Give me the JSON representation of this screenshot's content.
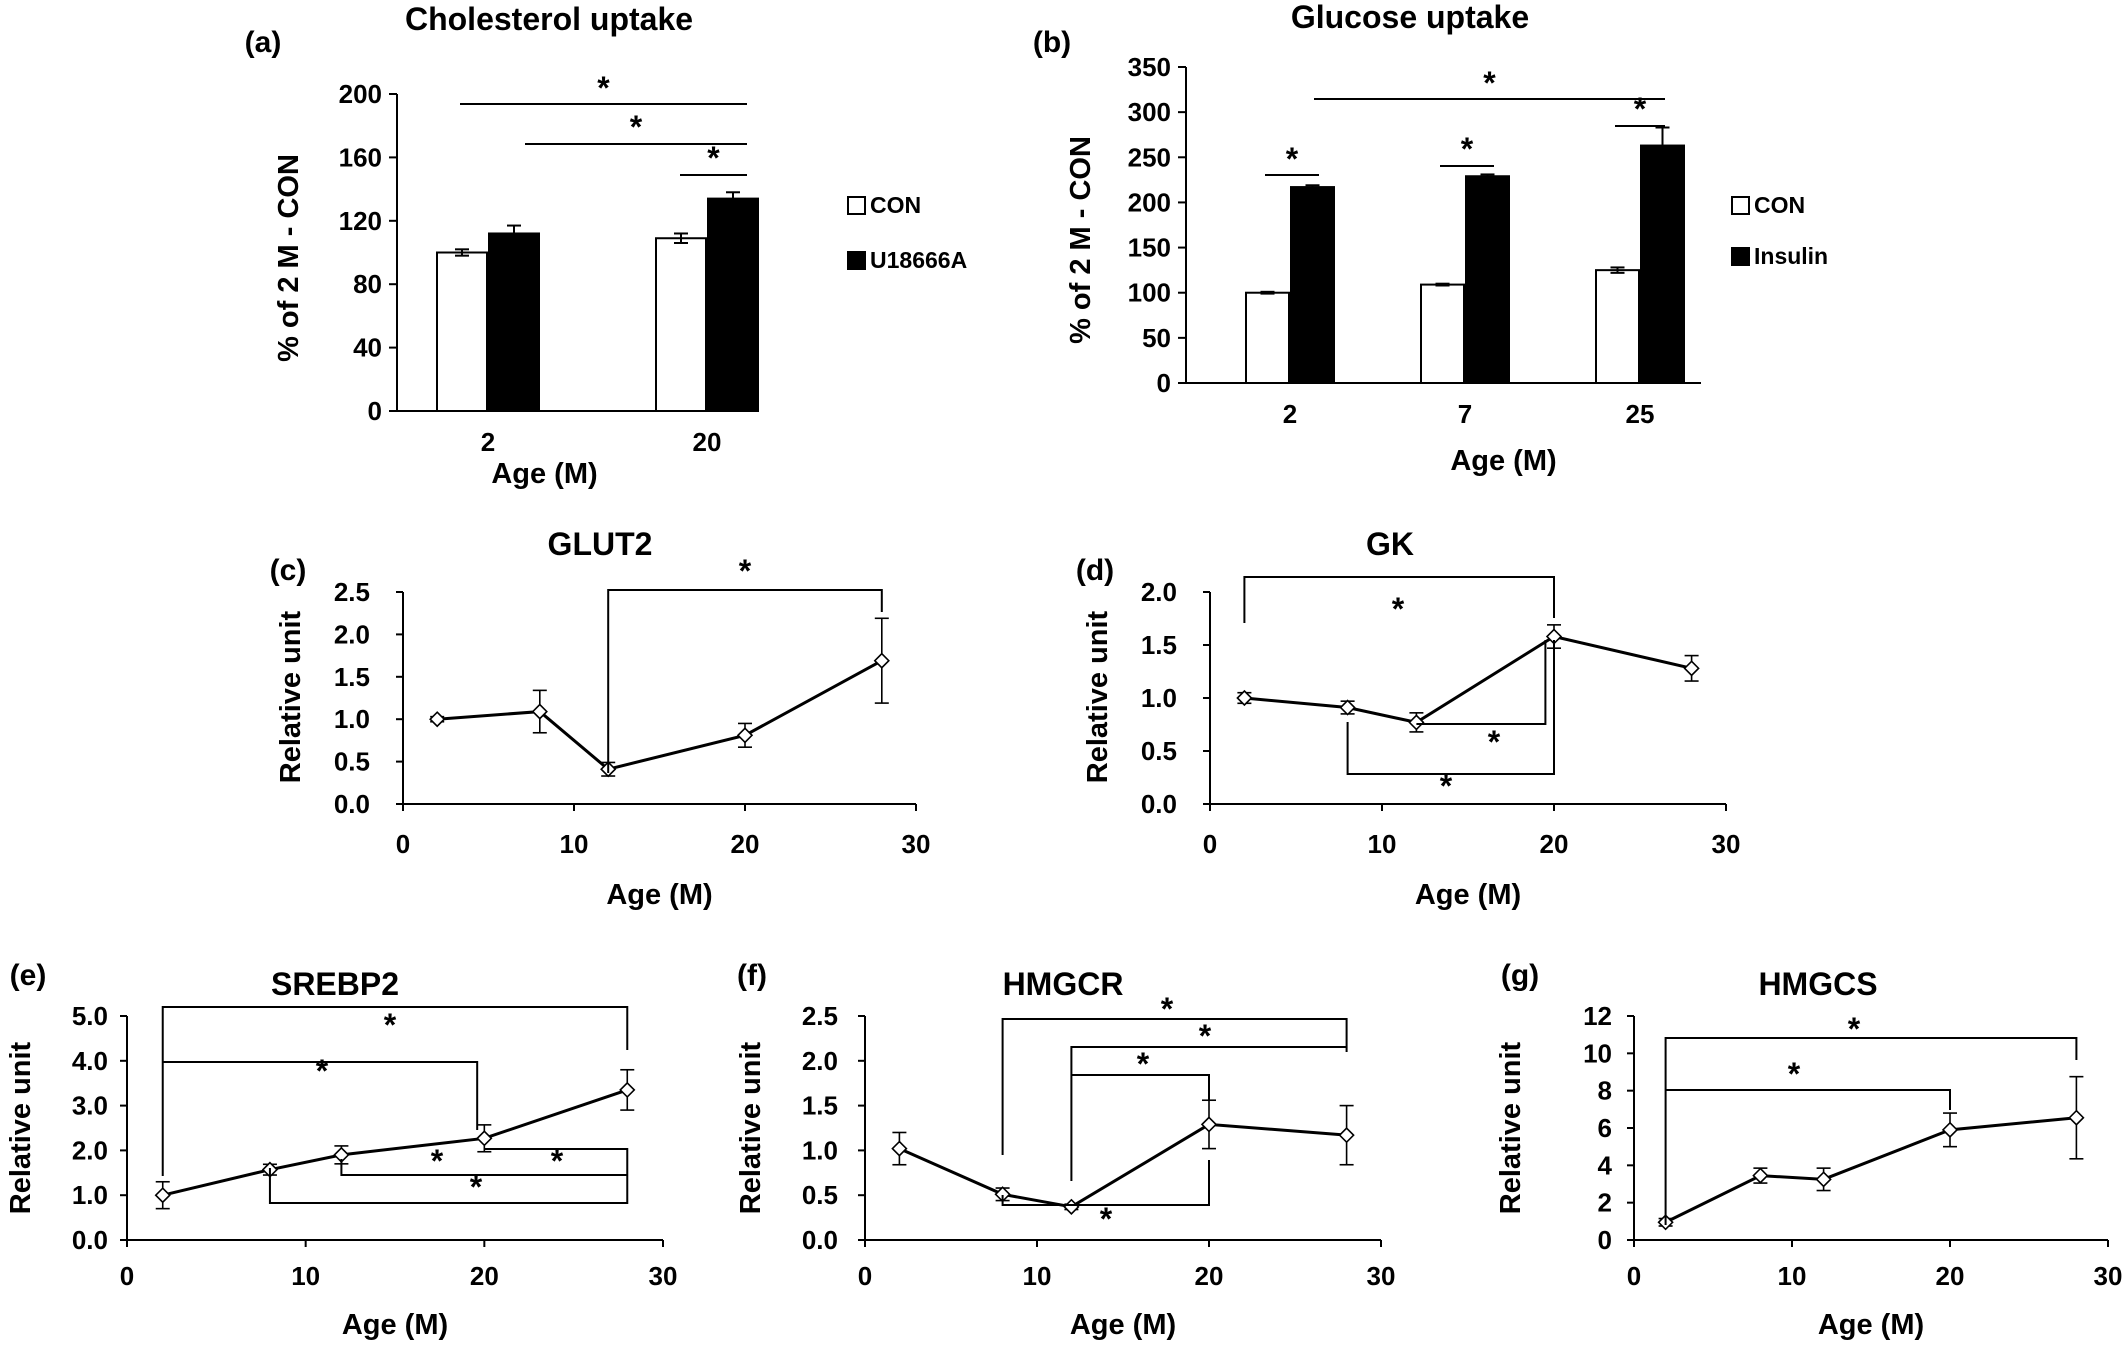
{
  "chart_data": [
    {
      "panel": "(a)",
      "type": "bar",
      "title": "Cholesterol uptake",
      "xlabel": "Age (M)",
      "ylabel": "% of 2 M - CON",
      "categories": [
        "2",
        "20"
      ],
      "ylim": [
        0,
        200
      ],
      "yticks": [
        "0",
        "40",
        "80",
        "120",
        "160",
        "200"
      ],
      "series": [
        {
          "name": "CON",
          "values": [
            100,
            109
          ],
          "errors": [
            2,
            3
          ],
          "color": "#ffffff"
        },
        {
          "name": "U18666A",
          "values": [
            112,
            134
          ],
          "errors": [
            5,
            4
          ],
          "color": "#000000"
        }
      ],
      "legend": "right",
      "annotations": [
        "*",
        "*",
        "*"
      ]
    },
    {
      "panel": "(b)",
      "type": "bar",
      "title": "Glucose uptake",
      "xlabel": "Age (M)",
      "ylabel": "% of 2 M - CON",
      "categories": [
        "2",
        "7",
        "25"
      ],
      "ylim": [
        0,
        350
      ],
      "yticks": [
        "0",
        "50",
        "100",
        "150",
        "200",
        "250",
        "300",
        "350"
      ],
      "series": [
        {
          "name": "CON",
          "values": [
            100,
            109,
            125
          ],
          "errors": [
            1,
            1,
            3
          ],
          "color": "#ffffff"
        },
        {
          "name": "Insulin",
          "values": [
            217,
            229,
            263
          ],
          "errors": [
            2,
            2,
            20
          ],
          "color": "#000000"
        }
      ],
      "legend": "right",
      "annotations": [
        "*",
        "*",
        "*",
        "*"
      ]
    },
    {
      "panel": "(c)",
      "type": "line",
      "title": "GLUT2",
      "xlabel": "Age (M)",
      "ylabel": "Relative unit",
      "xlim": [
        0,
        30
      ],
      "ylim": [
        0,
        2.5
      ],
      "xticks": [
        "0",
        "10",
        "20",
        "30"
      ],
      "yticks": [
        "0.0",
        "0.5",
        "1.0",
        "1.5",
        "2.0",
        "2.5"
      ],
      "x": [
        2,
        8,
        12,
        20,
        28
      ],
      "y": [
        1.0,
        1.09,
        0.41,
        0.81,
        1.69
      ],
      "errors": [
        0.03,
        0.25,
        0.08,
        0.14,
        0.5
      ],
      "annotations": [
        "*"
      ]
    },
    {
      "panel": "(d)",
      "type": "line",
      "title": "GK",
      "xlabel": "Age (M)",
      "ylabel": "Relative unit",
      "xlim": [
        0,
        30
      ],
      "ylim": [
        0,
        2.0
      ],
      "xticks": [
        "0",
        "10",
        "20",
        "30"
      ],
      "yticks": [
        "0.0",
        "0.5",
        "1.0",
        "1.5",
        "2.0"
      ],
      "x": [
        2,
        8,
        12,
        20,
        28
      ],
      "y": [
        1.0,
        0.91,
        0.77,
        1.58,
        1.28
      ],
      "errors": [
        0.05,
        0.06,
        0.09,
        0.11,
        0.12
      ],
      "annotations": [
        "*",
        "*",
        "*"
      ]
    },
    {
      "panel": "(e)",
      "type": "line",
      "title": "SREBP2",
      "xlabel": "Age (M)",
      "ylabel": "Relative unit",
      "xlim": [
        0,
        30
      ],
      "ylim": [
        0,
        5.0
      ],
      "xticks": [
        "0",
        "10",
        "20",
        "30"
      ],
      "yticks": [
        "0.0",
        "1.0",
        "2.0",
        "3.0",
        "4.0",
        "5.0"
      ],
      "x": [
        2,
        8,
        12,
        20,
        28
      ],
      "y": [
        1.0,
        1.57,
        1.9,
        2.27,
        3.35
      ],
      "errors": [
        0.3,
        0.12,
        0.2,
        0.3,
        0.45
      ],
      "annotations": [
        "*",
        "*",
        "*",
        "*",
        "*"
      ]
    },
    {
      "panel": "(f)",
      "type": "line",
      "title": "HMGCR",
      "xlabel": "Age (M)",
      "ylabel": "Relative unit",
      "xlim": [
        0,
        30
      ],
      "ylim": [
        0,
        2.5
      ],
      "xticks": [
        "0",
        "10",
        "20",
        "30"
      ],
      "yticks": [
        "0.0",
        "0.5",
        "1.0",
        "1.5",
        "2.0",
        "2.5"
      ],
      "x": [
        2,
        8,
        12,
        20,
        28
      ],
      "y": [
        1.02,
        0.51,
        0.37,
        1.29,
        1.17
      ],
      "errors": [
        0.18,
        0.07,
        0.03,
        0.27,
        0.33
      ],
      "annotations": [
        "*",
        "*",
        "*",
        "*"
      ]
    },
    {
      "panel": "(g)",
      "type": "line",
      "title": "HMGCS",
      "xlabel": "Age (M)",
      "ylabel": "Relative unit",
      "xlim": [
        0,
        30
      ],
      "ylim": [
        0,
        12
      ],
      "xticks": [
        "0",
        "10",
        "20",
        "30"
      ],
      "yticks": [
        "0",
        "2",
        "4",
        "6",
        "8",
        "10",
        "12"
      ],
      "x": [
        2,
        8,
        12,
        20,
        28
      ],
      "y": [
        0.95,
        3.45,
        3.25,
        5.9,
        6.55
      ],
      "errors": [
        0.2,
        0.4,
        0.6,
        0.9,
        2.2
      ],
      "annotations": [
        "*",
        "*"
      ]
    }
  ]
}
